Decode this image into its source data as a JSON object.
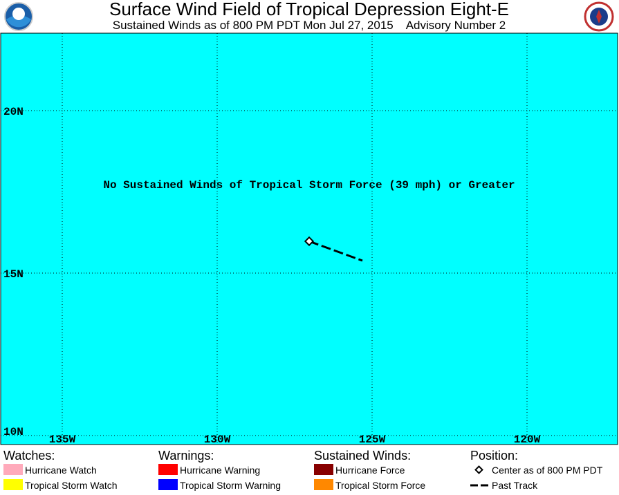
{
  "header": {
    "title": "Surface Wind Field of Tropical Depression Eight-E",
    "subtitle": "Sustained Winds as of 800 PM PDT Mon Jul 27, 2015    Advisory Number 2"
  },
  "map": {
    "lat_labels": [
      "20N",
      "15N",
      "10N"
    ],
    "lon_labels": [
      "135W",
      "130W",
      "125W",
      "120W"
    ],
    "message": "No Sustained Winds of Tropical Storm Force (39 mph) or Greater"
  },
  "legend": {
    "groups": [
      {
        "heading": "Watches:",
        "items": [
          "Hurricane Watch",
          "Tropical Storm Watch"
        ]
      },
      {
        "heading": "Warnings:",
        "items": [
          "Hurricane Warning",
          "Tropical Storm Warning"
        ]
      },
      {
        "heading": "Sustained Winds:",
        "items": [
          "Hurricane Force",
          "Tropical Storm Force"
        ]
      },
      {
        "heading": "Position:",
        "items": [
          "Center as of 800 PM PDT",
          "Past Track"
        ]
      }
    ]
  }
}
